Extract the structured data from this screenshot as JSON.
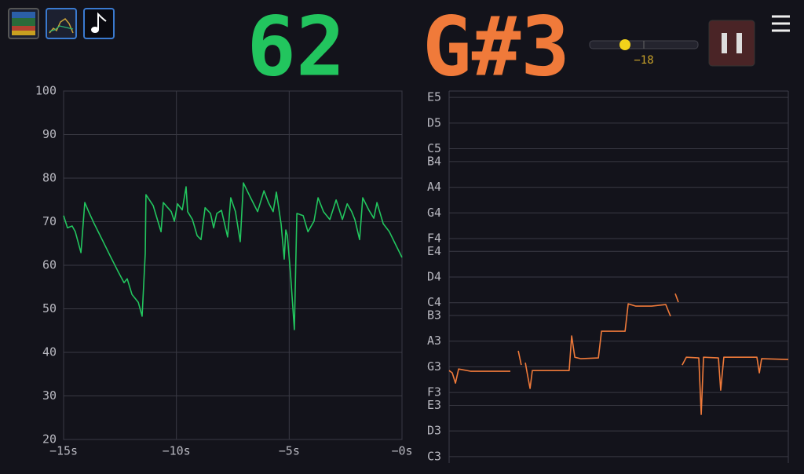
{
  "readout": {
    "level": "62",
    "note": "G#3",
    "gain": "−18"
  },
  "chart_data": [
    {
      "type": "line",
      "color": "#22c55e",
      "grid": true,
      "xlim": [
        -15,
        0
      ],
      "ylim": [
        20,
        100
      ],
      "xticks": [
        {
          "value": -15,
          "label": "−15s"
        },
        {
          "value": -10,
          "label": "−10s"
        },
        {
          "value": -5,
          "label": "−5s"
        },
        {
          "value": 0,
          "label": "−0s"
        }
      ],
      "yticks": [
        20,
        30,
        40,
        50,
        60,
        70,
        80,
        90,
        100
      ],
      "x": [
        -15,
        -14.83,
        -14.62,
        -14.48,
        -14.23,
        -14.06,
        -13.89,
        -13.64,
        -13.29,
        -12.95,
        -12.6,
        -12.32,
        -12.18,
        -11.97,
        -11.69,
        -11.52,
        -11.38,
        -11.35,
        -11.03,
        -10.68,
        -10.58,
        -10.23,
        -10.09,
        -9.95,
        -9.74,
        -9.57,
        -9.5,
        -9.29,
        -9.08,
        -8.91,
        -8.73,
        -8.49,
        -8.35,
        -8.21,
        -8.0,
        -7.73,
        -7.59,
        -7.38,
        -7.17,
        -7.03,
        -6.75,
        -6.4,
        -6.12,
        -5.92,
        -5.71,
        -5.57,
        -5.36,
        -5.22,
        -5.15,
        -5.08,
        -4.94,
        -4.77,
        -4.66,
        -4.38,
        -4.17,
        -3.9,
        -3.72,
        -3.48,
        -3.2,
        -2.92,
        -2.64,
        -2.43,
        -2.23,
        -2.09,
        -1.88,
        -1.74,
        -1.46,
        -1.25,
        -1.11,
        -0.83,
        -0.56,
        -0.28,
        0
      ],
      "values": [
        71.4,
        68.6,
        69,
        67.7,
        62.9,
        74.4,
        72.3,
        69.5,
        65.9,
        62.3,
        58.7,
        56,
        56.9,
        53.3,
        51.5,
        48.3,
        62.7,
        76.2,
        73.7,
        67.7,
        74.4,
        72.3,
        70.1,
        74.1,
        72.7,
        78,
        72.3,
        70.5,
        66.8,
        65.9,
        73.2,
        71.9,
        68.6,
        71.9,
        72.6,
        66.5,
        75.5,
        72.3,
        65.4,
        78.9,
        75.9,
        72.3,
        77.1,
        74.4,
        72.3,
        76.8,
        69.5,
        61.4,
        68.1,
        66.8,
        57.8,
        45.2,
        71.9,
        71.4,
        67.7,
        70.1,
        75.5,
        72.3,
        70.5,
        75,
        70.5,
        74.1,
        72.3,
        70.5,
        65.9,
        75.5,
        72.6,
        70.8,
        74.4,
        69.5,
        67.7,
        64.7,
        61.8
      ]
    },
    {
      "type": "line",
      "color": "#f07a3a",
      "grid": true,
      "xlim": [
        -15,
        0
      ],
      "ylim": [
        47.5,
        76.5
      ],
      "yticks": [
        {
          "value": 48,
          "label": "C3"
        },
        {
          "value": 50,
          "label": "D3"
        },
        {
          "value": 52,
          "label": "E3"
        },
        {
          "value": 53,
          "label": "F3"
        },
        {
          "value": 55,
          "label": "G3"
        },
        {
          "value": 57,
          "label": "A3"
        },
        {
          "value": 59,
          "label": "B3"
        },
        {
          "value": 60,
          "label": "C4"
        },
        {
          "value": 62,
          "label": "D4"
        },
        {
          "value": 64,
          "label": "E4"
        },
        {
          "value": 65,
          "label": "F4"
        },
        {
          "value": 67,
          "label": "G4"
        },
        {
          "value": 69,
          "label": "A4"
        },
        {
          "value": 71,
          "label": "B4"
        },
        {
          "value": 72,
          "label": "C5"
        },
        {
          "value": 74,
          "label": "D5"
        },
        {
          "value": 76,
          "label": "E5"
        }
      ],
      "x": [
        -15,
        -14.86,
        -14.72,
        -14.58,
        -14.03,
        -12.29,
        -12.0,
        -11.94,
        -11.81,
        -11.7,
        -11.63,
        -11.53,
        -11.42,
        -11.32,
        -10.56,
        -9.69,
        -9.58,
        -9.44,
        -9.17,
        -8.4,
        -8.26,
        -7.95,
        -7.22,
        -7.08,
        -6.74,
        -6.04,
        -5.42,
        -5.21,
        -5.1,
        -5.0,
        -4.86,
        -4.8,
        -4.69,
        -4.51,
        -3.96,
        -3.85,
        -3.75,
        -3.09,
        -2.99,
        -2.85,
        -1.39,
        -1.28,
        -1.18,
        0
      ],
      "values": [
        54.71,
        54.53,
        53.73,
        54.83,
        54.65,
        54.65,
        null,
        56.24,
        55.14,
        null,
        55.32,
        54.35,
        53.31,
        54.71,
        54.71,
        54.71,
        57.41,
        55.75,
        55.63,
        55.69,
        57.77,
        57.77,
        57.77,
        59.91,
        59.73,
        59.73,
        59.85,
        58.94,
        null,
        60.71,
        60.04,
        null,
        55.14,
        55.75,
        55.69,
        51.29,
        55.75,
        55.69,
        53.18,
        55.75,
        55.75,
        54.53,
        55.63,
        55.57
      ]
    }
  ]
}
